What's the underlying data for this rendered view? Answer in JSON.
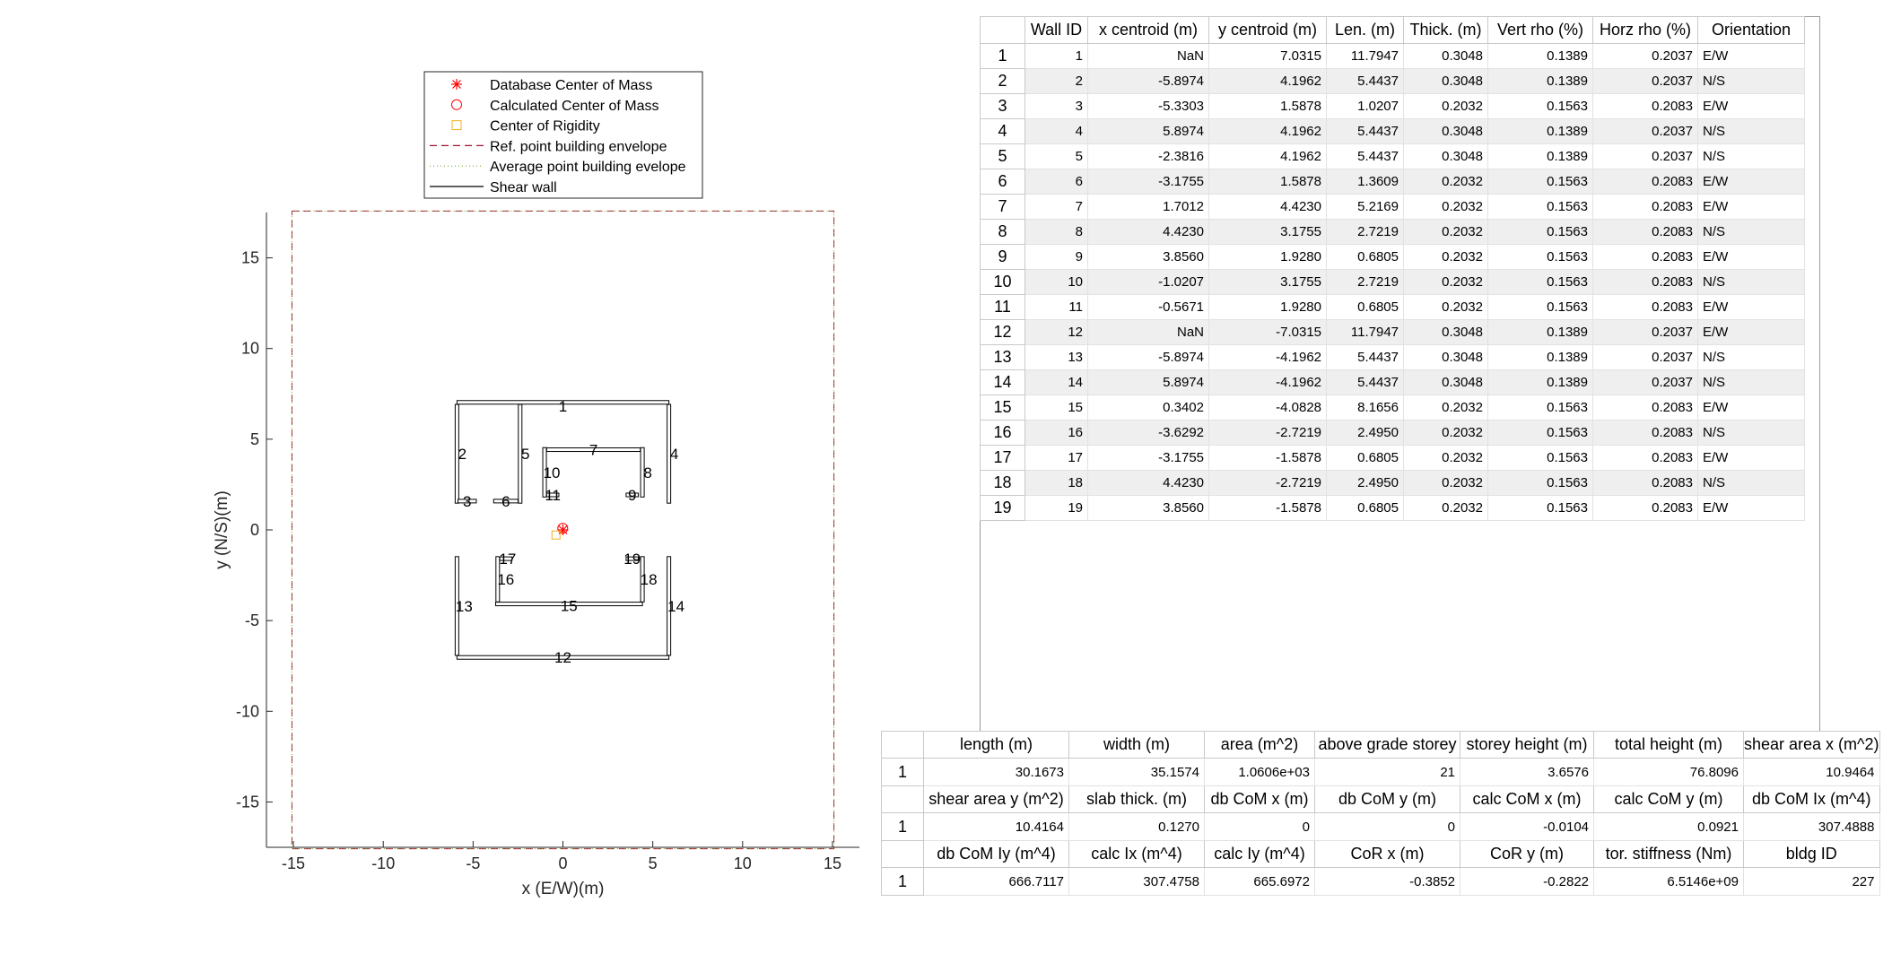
{
  "chart_data": {
    "type": "scatter",
    "xlabel": "x (E/W)(m)",
    "ylabel": "y (N/S)(m)",
    "xlim": [
      -16.5,
      16.5
    ],
    "ylim": [
      -17.5,
      17.5
    ],
    "xticks": [
      -15,
      -10,
      -5,
      0,
      5,
      10,
      15
    ],
    "yticks": [
      -15,
      -10,
      -5,
      0,
      5,
      10,
      15
    ],
    "grid": false,
    "legend_position": "top",
    "legend": [
      {
        "label": "Database Center of Mass",
        "marker": "asterisk",
        "color": "#ff0000"
      },
      {
        "label": "Calculated Center of Mass",
        "marker": "circle",
        "color": "#ff0000"
      },
      {
        "label": "Center of Rigidity",
        "marker": "square",
        "color": "#edb120"
      },
      {
        "label": "Ref. point building envelope",
        "marker": "dashed-line",
        "color": "#a2142f"
      },
      {
        "label": "Average point building evelope",
        "marker": "dotted-line",
        "color": "#77ac30"
      },
      {
        "label": "Shear wall",
        "marker": "solid-line",
        "color": "#000000"
      }
    ],
    "points": {
      "db_com": [
        0,
        0
      ],
      "calc_com": [
        -0.0104,
        0.0921
      ],
      "cor": [
        -0.3852,
        -0.2822
      ]
    },
    "envelope": {
      "x": [
        -15.08,
        15.08
      ],
      "y": [
        -17.58,
        17.58
      ]
    },
    "walls": [
      {
        "id": 1,
        "orientation": "E/W",
        "x": 0,
        "y": 7.0315,
        "length": 11.7947,
        "thick": 0.3048
      },
      {
        "id": 2,
        "orientation": "N/S",
        "x": -5.8974,
        "y": 4.1962,
        "length": 5.4437,
        "thick": 0.3048
      },
      {
        "id": 3,
        "orientation": "E/W",
        "x": -5.3303,
        "y": 1.5878,
        "length": 1.0207,
        "thick": 0.2032
      },
      {
        "id": 4,
        "orientation": "N/S",
        "x": 5.8974,
        "y": 4.1962,
        "length": 5.4437,
        "thick": 0.3048
      },
      {
        "id": 5,
        "orientation": "N/S",
        "x": -2.3816,
        "y": 4.1962,
        "length": 5.4437,
        "thick": 0.3048
      },
      {
        "id": 6,
        "orientation": "E/W",
        "x": -3.1755,
        "y": 1.5878,
        "length": 1.3609,
        "thick": 0.2032
      },
      {
        "id": 7,
        "orientation": "E/W",
        "x": 1.7012,
        "y": 4.423,
        "length": 5.2169,
        "thick": 0.2032
      },
      {
        "id": 8,
        "orientation": "N/S",
        "x": 4.423,
        "y": 3.1755,
        "length": 2.7219,
        "thick": 0.2032
      },
      {
        "id": 9,
        "orientation": "E/W",
        "x": 3.856,
        "y": 1.928,
        "length": 0.6805,
        "thick": 0.2032
      },
      {
        "id": 10,
        "orientation": "N/S",
        "x": -1.0207,
        "y": 3.1755,
        "length": 2.7219,
        "thick": 0.2032
      },
      {
        "id": 11,
        "orientation": "E/W",
        "x": -0.5671,
        "y": 1.928,
        "length": 0.6805,
        "thick": 0.2032
      },
      {
        "id": 12,
        "orientation": "E/W",
        "x": 0,
        "y": -7.0315,
        "length": 11.7947,
        "thick": 0.3048
      },
      {
        "id": 13,
        "orientation": "N/S",
        "x": -5.8974,
        "y": -4.1962,
        "length": 5.4437,
        "thick": 0.3048
      },
      {
        "id": 14,
        "orientation": "N/S",
        "x": 5.8974,
        "y": -4.1962,
        "length": 5.4437,
        "thick": 0.3048
      },
      {
        "id": 15,
        "orientation": "E/W",
        "x": 0.3402,
        "y": -4.0828,
        "length": 8.1656,
        "thick": 0.2032
      },
      {
        "id": 16,
        "orientation": "N/S",
        "x": -3.6292,
        "y": -2.7219,
        "length": 2.495,
        "thick": 0.2032
      },
      {
        "id": 17,
        "orientation": "E/W",
        "x": -3.1755,
        "y": -1.5878,
        "length": 0.6805,
        "thick": 0.2032
      },
      {
        "id": 18,
        "orientation": "N/S",
        "x": 4.423,
        "y": -2.7219,
        "length": 2.495,
        "thick": 0.2032
      },
      {
        "id": 19,
        "orientation": "E/W",
        "x": 3.856,
        "y": -1.5878,
        "length": 0.6805,
        "thick": 0.2032
      }
    ]
  },
  "wall_table": {
    "columns": [
      "Wall ID",
      "x centroid (m)",
      "y centroid (m)",
      "Len. (m)",
      "Thick. (m)",
      "Vert rho (%)",
      "Horz rho (%)",
      "Orientation"
    ],
    "rows": [
      [
        "1",
        "1",
        "NaN",
        "7.0315",
        "11.7947",
        "0.3048",
        "0.1389",
        "0.2037",
        "E/W"
      ],
      [
        "2",
        "2",
        "-5.8974",
        "4.1962",
        "5.4437",
        "0.3048",
        "0.1389",
        "0.2037",
        "N/S"
      ],
      [
        "3",
        "3",
        "-5.3303",
        "1.5878",
        "1.0207",
        "0.2032",
        "0.1563",
        "0.2083",
        "E/W"
      ],
      [
        "4",
        "4",
        "5.8974",
        "4.1962",
        "5.4437",
        "0.3048",
        "0.1389",
        "0.2037",
        "N/S"
      ],
      [
        "5",
        "5",
        "-2.3816",
        "4.1962",
        "5.4437",
        "0.3048",
        "0.1389",
        "0.2037",
        "N/S"
      ],
      [
        "6",
        "6",
        "-3.1755",
        "1.5878",
        "1.3609",
        "0.2032",
        "0.1563",
        "0.2083",
        "E/W"
      ],
      [
        "7",
        "7",
        "1.7012",
        "4.4230",
        "5.2169",
        "0.2032",
        "0.1563",
        "0.2083",
        "E/W"
      ],
      [
        "8",
        "8",
        "4.4230",
        "3.1755",
        "2.7219",
        "0.2032",
        "0.1563",
        "0.2083",
        "N/S"
      ],
      [
        "9",
        "9",
        "3.8560",
        "1.9280",
        "0.6805",
        "0.2032",
        "0.1563",
        "0.2083",
        "E/W"
      ],
      [
        "10",
        "10",
        "-1.0207",
        "3.1755",
        "2.7219",
        "0.2032",
        "0.1563",
        "0.2083",
        "N/S"
      ],
      [
        "11",
        "11",
        "-0.5671",
        "1.9280",
        "0.6805",
        "0.2032",
        "0.1563",
        "0.2083",
        "E/W"
      ],
      [
        "12",
        "12",
        "NaN",
        "-7.0315",
        "11.7947",
        "0.3048",
        "0.1389",
        "0.2037",
        "E/W"
      ],
      [
        "13",
        "13",
        "-5.8974",
        "-4.1962",
        "5.4437",
        "0.3048",
        "0.1389",
        "0.2037",
        "N/S"
      ],
      [
        "14",
        "14",
        "5.8974",
        "-4.1962",
        "5.4437",
        "0.3048",
        "0.1389",
        "0.2037",
        "N/S"
      ],
      [
        "15",
        "15",
        "0.3402",
        "-4.0828",
        "8.1656",
        "0.2032",
        "0.1563",
        "0.2083",
        "E/W"
      ],
      [
        "16",
        "16",
        "-3.6292",
        "-2.7219",
        "2.4950",
        "0.2032",
        "0.1563",
        "0.2083",
        "N/S"
      ],
      [
        "17",
        "17",
        "-3.1755",
        "-1.5878",
        "0.6805",
        "0.2032",
        "0.1563",
        "0.2083",
        "E/W"
      ],
      [
        "18",
        "18",
        "4.4230",
        "-2.7219",
        "2.4950",
        "0.2032",
        "0.1563",
        "0.2083",
        "N/S"
      ],
      [
        "19",
        "19",
        "3.8560",
        "-1.5878",
        "0.6805",
        "0.2032",
        "0.1563",
        "0.2083",
        "E/W"
      ]
    ]
  },
  "props_tables": [
    {
      "columns": [
        "length (m)",
        "width (m)",
        "area (m^2)",
        "above grade storey",
        "storey height (m)",
        "total height (m)",
        "shear area x (m^2)"
      ],
      "row_label": "1",
      "values": [
        "30.1673",
        "35.1574",
        "1.0606e+03",
        "21",
        "3.6576",
        "76.8096",
        "10.9464"
      ]
    },
    {
      "columns": [
        "shear area y (m^2)",
        "slab thick. (m)",
        "db CoM x (m)",
        "db CoM y (m)",
        "calc CoM x (m)",
        "calc CoM y (m)",
        "db CoM Ix (m^4)"
      ],
      "row_label": "1",
      "values": [
        "10.4164",
        "0.1270",
        "0",
        "0",
        "-0.0104",
        "0.0921",
        "307.4888"
      ]
    },
    {
      "columns": [
        "db CoM Iy (m^4)",
        "calc Ix (m^4)",
        "calc Iy (m^4)",
        "CoR x (m)",
        "CoR y (m)",
        "tor. stiffness (Nm)",
        "bldg ID"
      ],
      "row_label": "1",
      "values": [
        "666.7117",
        "307.4758",
        "665.6972",
        "-0.3852",
        "-0.2822",
        "6.5146e+09",
        "227"
      ]
    }
  ]
}
